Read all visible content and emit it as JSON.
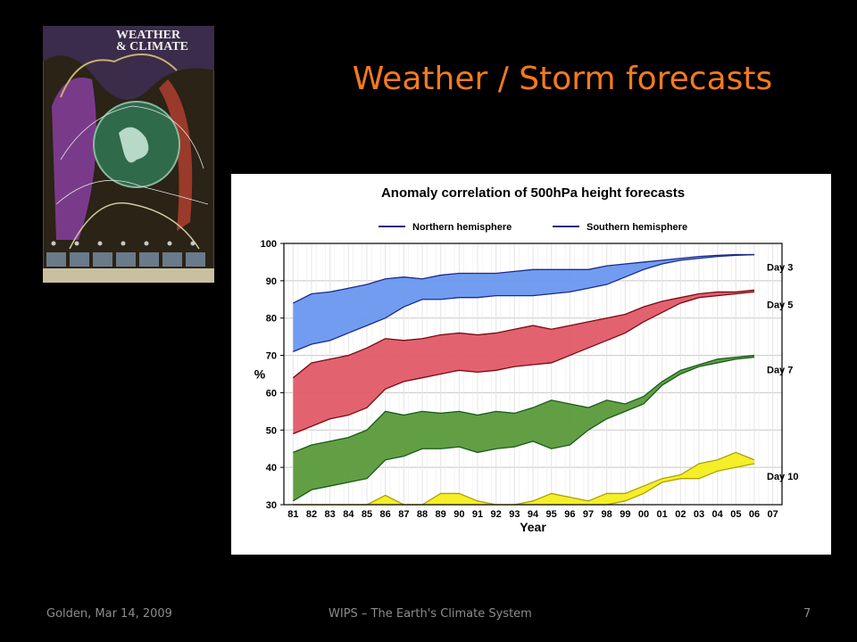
{
  "slide": {
    "title": "Weather / Storm forecasts",
    "footer_left": "Golden, Mar 14, 2009",
    "footer_center": "WIPS – The Earth's Climate System",
    "page_number": "7"
  },
  "poster": {
    "title_line1": "WEATHER",
    "title_line2": "& CLIMATE"
  },
  "colors": {
    "background": "#000000",
    "title": "#f47a1f",
    "footer": "#8c8c8c",
    "day3": "#6a97ee",
    "day5": "#e05a68",
    "day7": "#5a9a3a",
    "day10": "#f3ee1e"
  },
  "chart_data": {
    "type": "area",
    "title": "Anomaly correlation of 500hPa height forecasts",
    "xlabel": "Year",
    "ylabel": "%",
    "ylim": [
      30,
      100
    ],
    "grid": true,
    "legend": [
      "Northern hemisphere",
      "Southern hemisphere"
    ],
    "legend_placement": "top",
    "yticks": [
      30,
      40,
      50,
      60,
      70,
      80,
      90,
      100
    ],
    "xticks": [
      "81",
      "82",
      "83",
      "84",
      "85",
      "86",
      "87",
      "88",
      "89",
      "90",
      "91",
      "92",
      "93",
      "94",
      "95",
      "96",
      "97",
      "98",
      "99",
      "00",
      "01",
      "02",
      "03",
      "04",
      "05",
      "06",
      "07"
    ],
    "x": [
      1981,
      1982,
      1983,
      1984,
      1985,
      1986,
      1987,
      1988,
      1989,
      1990,
      1991,
      1992,
      1993,
      1994,
      1995,
      1996,
      1997,
      1998,
      1999,
      2000,
      2001,
      2002,
      2003,
      2004,
      2005,
      2006
    ],
    "series": [
      {
        "name": "Day 3",
        "northern": [
          84,
          86.5,
          87,
          88,
          89,
          90.5,
          91,
          90.5,
          91.5,
          92,
          92,
          92,
          92.5,
          93,
          93,
          93,
          93,
          94,
          94.5,
          95,
          95.5,
          96,
          96.5,
          96.8,
          97,
          97
        ],
        "southern": [
          71,
          73,
          74,
          76,
          78,
          80,
          83,
          85,
          85,
          85.5,
          85.5,
          86,
          86,
          86,
          86.5,
          87,
          88,
          89,
          91,
          93,
          94.5,
          95.5,
          96,
          96.5,
          96.8,
          97
        ]
      },
      {
        "name": "Day 5",
        "northern": [
          64,
          68,
          69,
          70,
          72,
          74.5,
          74,
          74.5,
          75.5,
          76,
          75.5,
          76,
          77,
          78,
          77,
          78,
          79,
          80,
          81,
          83,
          84.5,
          85.5,
          86.5,
          87,
          87,
          87.5
        ],
        "southern": [
          49,
          51,
          53,
          54,
          56,
          61,
          63,
          64,
          65,
          66,
          65.5,
          66,
          67,
          67.5,
          68,
          70,
          72,
          74,
          76,
          79,
          81.5,
          84,
          85.5,
          86,
          86.5,
          87
        ]
      },
      {
        "name": "Day 7",
        "northern": [
          44,
          46,
          47,
          48,
          50,
          55,
          54,
          55,
          54.5,
          55,
          54,
          55,
          54.5,
          56,
          58,
          57,
          56,
          58,
          57,
          59,
          63,
          66,
          67.5,
          69,
          69.5,
          70
        ],
        "southern": [
          31,
          34,
          35,
          36,
          37,
          42,
          43,
          45,
          45,
          45.5,
          44,
          45,
          45.5,
          47,
          45,
          46,
          50,
          53,
          55,
          57,
          62,
          65,
          67,
          68,
          69,
          69.5
        ]
      },
      {
        "name": "Day 10",
        "northern": [
          30,
          30,
          30,
          30,
          30,
          32.5,
          30,
          30,
          33,
          33,
          31,
          30,
          30,
          31,
          33,
          32,
          31,
          33,
          33,
          35,
          37,
          38,
          41,
          42,
          44,
          42
        ],
        "southern": [
          30,
          30,
          30,
          30,
          30,
          30,
          30,
          30,
          30,
          30,
          30,
          30,
          30,
          30,
          30,
          30,
          30,
          30,
          31,
          33,
          36,
          37,
          37,
          39,
          40,
          41
        ]
      }
    ]
  }
}
